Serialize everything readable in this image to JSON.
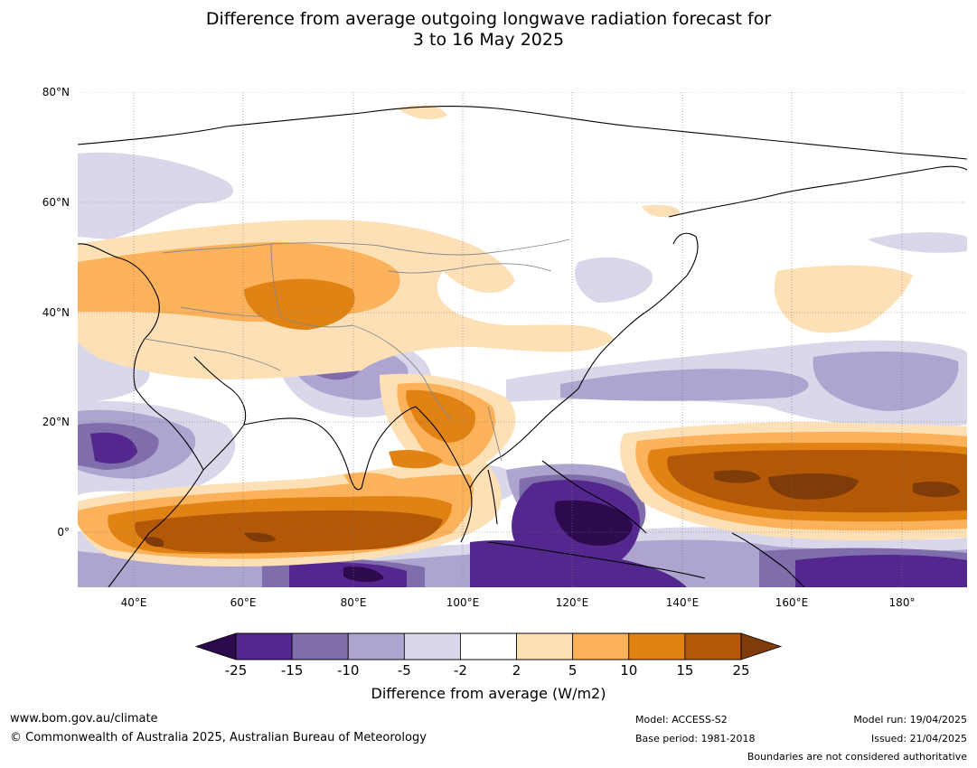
{
  "title_line1": "Difference from average outgoing longwave radiation forecast for",
  "title_line2": "3 to 16 May 2025",
  "map": {
    "lat_labels": [
      "80°N",
      "60°N",
      "40°N",
      "20°N",
      "0°"
    ],
    "lon_labels": [
      "40°E",
      "60°E",
      "80°E",
      "100°E",
      "120°E",
      "140°E",
      "160°E",
      "180°"
    ],
    "colors": {
      "p4": "#2d0a4e",
      "p3": "#54278f",
      "p2": "#7f6eab",
      "p1": "#ada5cf",
      "p0": "#d8d8ea",
      "o0": "#fee0b6",
      "o1": "#fbb25a",
      "o2": "#e08214",
      "o3": "#b35806",
      "o4": "#7f3b08"
    }
  },
  "colorbar": {
    "ticks": [
      "-25",
      "-15",
      "-10",
      "-5",
      "-2",
      "2",
      "5",
      "10",
      "15",
      "25"
    ],
    "colors": [
      "#54278f",
      "#7f6eab",
      "#ada5cf",
      "#d8d8ea",
      "#ffffff",
      "#fee0b6",
      "#fbb25a",
      "#e08214",
      "#b35806"
    ],
    "under_color": "#2d0a4e",
    "over_color": "#7f3b08",
    "label": "Difference from average (W/m2)"
  },
  "footer": {
    "url": "www.bom.gov.au/climate",
    "copyright": "© Commonwealth of Australia 2025, Australian Bureau of Meteorology",
    "model": "Model: ACCESS-S2",
    "base_period": "Base period: 1981-2018",
    "model_run": "Model run: 19/04/2025",
    "issued": "Issued: 21/04/2025",
    "disclaimer": "Boundaries are not considered authoritative"
  }
}
